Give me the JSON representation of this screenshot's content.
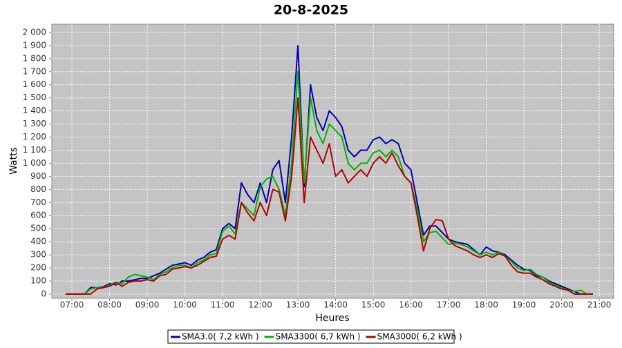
{
  "chart_data": {
    "type": "line",
    "title": "20-8-2025",
    "x_label": "Heures",
    "y_label": "Watts",
    "x": [
      "06:50",
      "07:00",
      "07:10",
      "07:20",
      "07:30",
      "07:40",
      "07:50",
      "08:00",
      "08:10",
      "08:20",
      "08:30",
      "08:40",
      "08:50",
      "09:00",
      "09:10",
      "09:20",
      "09:30",
      "09:40",
      "09:50",
      "10:00",
      "10:10",
      "10:20",
      "10:30",
      "10:40",
      "10:50",
      "11:00",
      "11:10",
      "11:20",
      "11:30",
      "11:40",
      "11:50",
      "12:00",
      "12:10",
      "12:20",
      "12:30",
      "12:40",
      "12:50",
      "13:00",
      "13:10",
      "13:20",
      "13:30",
      "13:40",
      "13:50",
      "14:00",
      "14:10",
      "14:20",
      "14:30",
      "14:40",
      "14:50",
      "15:00",
      "15:10",
      "15:20",
      "15:30",
      "15:40",
      "15:50",
      "16:00",
      "16:10",
      "16:20",
      "16:30",
      "16:40",
      "16:50",
      "17:00",
      "17:10",
      "17:20",
      "17:30",
      "17:40",
      "17:50",
      "18:00",
      "18:10",
      "18:20",
      "18:30",
      "18:40",
      "18:50",
      "19:00",
      "19:10",
      "19:20",
      "19:30",
      "19:40",
      "19:50",
      "20:00",
      "20:10",
      "20:20",
      "20:30",
      "20:40",
      "20:50"
    ],
    "series": [
      {
        "name": "SMA3.0( 7,2 kWh )",
        "color": "#0000b4",
        "values": [
          0,
          0,
          0,
          0,
          50,
          50,
          55,
          80,
          70,
          100,
          100,
          110,
          120,
          120,
          140,
          160,
          190,
          220,
          230,
          240,
          220,
          260,
          280,
          320,
          340,
          500,
          540,
          500,
          850,
          760,
          700,
          850,
          700,
          950,
          1020,
          700,
          1200,
          1900,
          820,
          1600,
          1350,
          1250,
          1400,
          1350,
          1280,
          1100,
          1050,
          1100,
          1100,
          1180,
          1200,
          1150,
          1180,
          1150,
          1000,
          950,
          700,
          450,
          520,
          520,
          470,
          420,
          400,
          390,
          380,
          340,
          300,
          360,
          330,
          320,
          300,
          260,
          220,
          190,
          180,
          140,
          130,
          100,
          80,
          60,
          40,
          20,
          0,
          0,
          0
        ]
      },
      {
        "name": "SMA3300( 6,7 kWh )",
        "color": "#00b400",
        "values": [
          0,
          0,
          0,
          0,
          40,
          50,
          50,
          70,
          90,
          80,
          130,
          150,
          140,
          130,
          110,
          150,
          170,
          200,
          220,
          220,
          200,
          240,
          260,
          300,
          310,
          480,
          520,
          460,
          700,
          650,
          600,
          820,
          880,
          900,
          800,
          600,
          1000,
          1700,
          850,
          1500,
          1250,
          1150,
          1300,
          1250,
          1200,
          1000,
          950,
          1000,
          1000,
          1080,
          1100,
          1050,
          1100,
          1050,
          900,
          850,
          650,
          400,
          470,
          480,
          430,
          380,
          390,
          380,
          360,
          330,
          300,
          320,
          300,
          320,
          290,
          250,
          200,
          180,
          190,
          150,
          130,
          90,
          70,
          50,
          30,
          20,
          30,
          0,
          0
        ]
      },
      {
        "name": "SMA3000( 6,2 kWh )",
        "color": "#b40000",
        "values": [
          0,
          0,
          0,
          0,
          0,
          40,
          50,
          60,
          90,
          60,
          90,
          100,
          100,
          110,
          100,
          140,
          150,
          190,
          200,
          210,
          200,
          220,
          250,
          280,
          290,
          420,
          450,
          420,
          700,
          620,
          560,
          700,
          600,
          800,
          780,
          560,
          900,
          1500,
          700,
          1200,
          1100,
          1000,
          1150,
          900,
          950,
          850,
          900,
          950,
          900,
          1000,
          1050,
          1000,
          1080,
          980,
          900,
          850,
          600,
          330,
          500,
          570,
          560,
          420,
          370,
          350,
          330,
          300,
          280,
          300,
          280,
          310,
          290,
          220,
          170,
          160,
          160,
          130,
          110,
          80,
          60,
          40,
          30,
          0,
          0,
          0,
          0
        ]
      }
    ],
    "xlim": [
      "06:28",
      "21:23"
    ],
    "xticks": [
      "07:00",
      "08:00",
      "09:00",
      "10:00",
      "11:00",
      "12:00",
      "13:00",
      "14:00",
      "15:00",
      "16:00",
      "17:00",
      "18:00",
      "19:00",
      "20:00",
      "21:00"
    ],
    "ylim": [
      -32,
      2063
    ],
    "yticks": [
      0,
      100,
      200,
      300,
      400,
      500,
      600,
      700,
      800,
      900,
      {
        "value": 1000,
        "label": "1 000"
      },
      {
        "value": 1100,
        "label": "1 100"
      },
      {
        "value": 1200,
        "label": "1 200"
      },
      {
        "value": 1300,
        "label": "1 300"
      },
      {
        "value": 1400,
        "label": "1 400"
      },
      {
        "value": 1500,
        "label": "1 500"
      },
      {
        "value": 1600,
        "label": "1 600"
      },
      {
        "value": 1700,
        "label": "1 700"
      },
      {
        "value": 1800,
        "label": "1 800"
      },
      {
        "value": 1900,
        "label": "1 900"
      },
      {
        "value": 2000,
        "label": "2 000"
      }
    ],
    "grid": true,
    "legend": "bottom"
  }
}
